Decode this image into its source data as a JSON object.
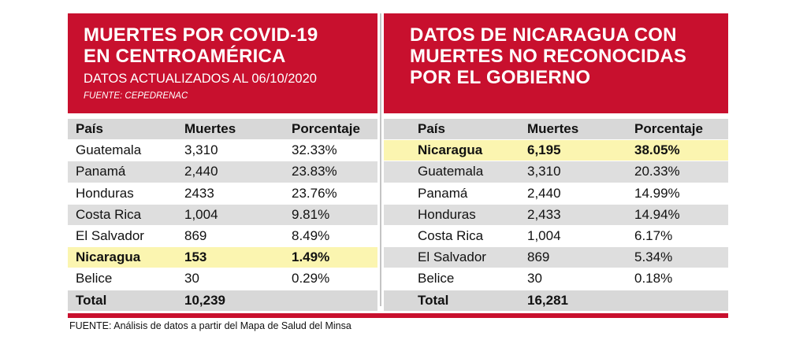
{
  "chart_data": [
    {
      "type": "table",
      "title": "MUERTES POR COVID-19 EN CENTROAMÉRICA",
      "subtitle": "DATOS ACTUALIZADOS AL 06/10/2020",
      "source": "FUENTE: CEPEDRENAC",
      "columns": [
        "País",
        "Muertes",
        "Porcentaje"
      ],
      "rows": [
        {
          "pais": "Guatemala",
          "muertes": "3,310",
          "porcentaje": "32.33%",
          "highlight": false
        },
        {
          "pais": "Panamá",
          "muertes": "2,440",
          "porcentaje": "23.83%",
          "highlight": false
        },
        {
          "pais": "Honduras",
          "muertes": "2433",
          "porcentaje": "23.76%",
          "highlight": false
        },
        {
          "pais": "Costa Rica",
          "muertes": "1,004",
          "porcentaje": "9.81%",
          "highlight": false
        },
        {
          "pais": "El Salvador",
          "muertes": "869",
          "porcentaje": "8.49%",
          "highlight": false
        },
        {
          "pais": "Nicaragua",
          "muertes": "153",
          "porcentaje": "1.49%",
          "highlight": true
        },
        {
          "pais": "Belice",
          "muertes": "30",
          "porcentaje": "0.29%",
          "highlight": false
        }
      ],
      "total": {
        "label": "Total",
        "muertes": "10,239",
        "porcentaje": ""
      }
    },
    {
      "type": "table",
      "title": "DATOS DE NICARAGUA CON MUERTES NO RECONOCIDAS POR EL GOBIERNO",
      "columns": [
        "País",
        "Muertes",
        "Porcentaje"
      ],
      "rows": [
        {
          "pais": "Nicaragua",
          "muertes": "6,195",
          "porcentaje": "38.05%",
          "highlight": true
        },
        {
          "pais": "Guatemala",
          "muertes": "3,310",
          "porcentaje": "20.33%",
          "highlight": false
        },
        {
          "pais": "Panamá",
          "muertes": "2,440",
          "porcentaje": "14.99%",
          "highlight": false
        },
        {
          "pais": "Honduras",
          "muertes": "2,433",
          "porcentaje": "14.94%",
          "highlight": false
        },
        {
          "pais": "Costa Rica",
          "muertes": "1,004",
          "porcentaje": "6.17%",
          "highlight": false
        },
        {
          "pais": "El Salvador",
          "muertes": "869",
          "porcentaje": "5.34%",
          "highlight": false
        },
        {
          "pais": "Belice",
          "muertes": "30",
          "porcentaje": "0.18%",
          "highlight": false
        }
      ],
      "total": {
        "label": "Total",
        "muertes": "16,281",
        "porcentaje": ""
      }
    }
  ],
  "colors": {
    "header_red": "#c8102e",
    "row_gray": "#dedede",
    "highlight_yellow": "#fbf5b0"
  },
  "footer": {
    "source": "FUENTE: Análisis de datos a partir del Mapa de Salud del Minsa"
  }
}
